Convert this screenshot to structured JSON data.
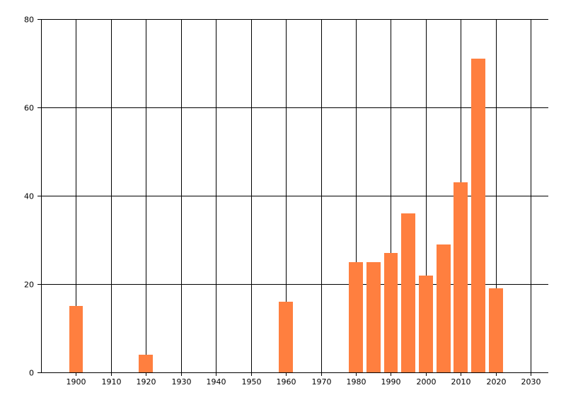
{
  "chart_data": {
    "type": "bar",
    "title": "",
    "xlabel": "",
    "ylabel": "",
    "x": [
      1900,
      1920,
      1960,
      1980,
      1985,
      1990,
      1995,
      2000,
      2005,
      2010,
      2015,
      2020
    ],
    "values": [
      15,
      4,
      16,
      25,
      25,
      27,
      36,
      22,
      29,
      43,
      71,
      19
    ],
    "bar_width_years": 4,
    "xlim": [
      1890,
      2035
    ],
    "ylim": [
      0,
      80
    ],
    "x_ticks": [
      1900,
      1910,
      1920,
      1930,
      1940,
      1950,
      1960,
      1970,
      1980,
      1990,
      2000,
      2010,
      2020,
      2030
    ],
    "y_ticks": [
      0,
      20,
      40,
      60,
      80
    ],
    "grid": true,
    "legend": "none",
    "bar_color": "#FF7F3F",
    "grid_color": "#000000"
  }
}
